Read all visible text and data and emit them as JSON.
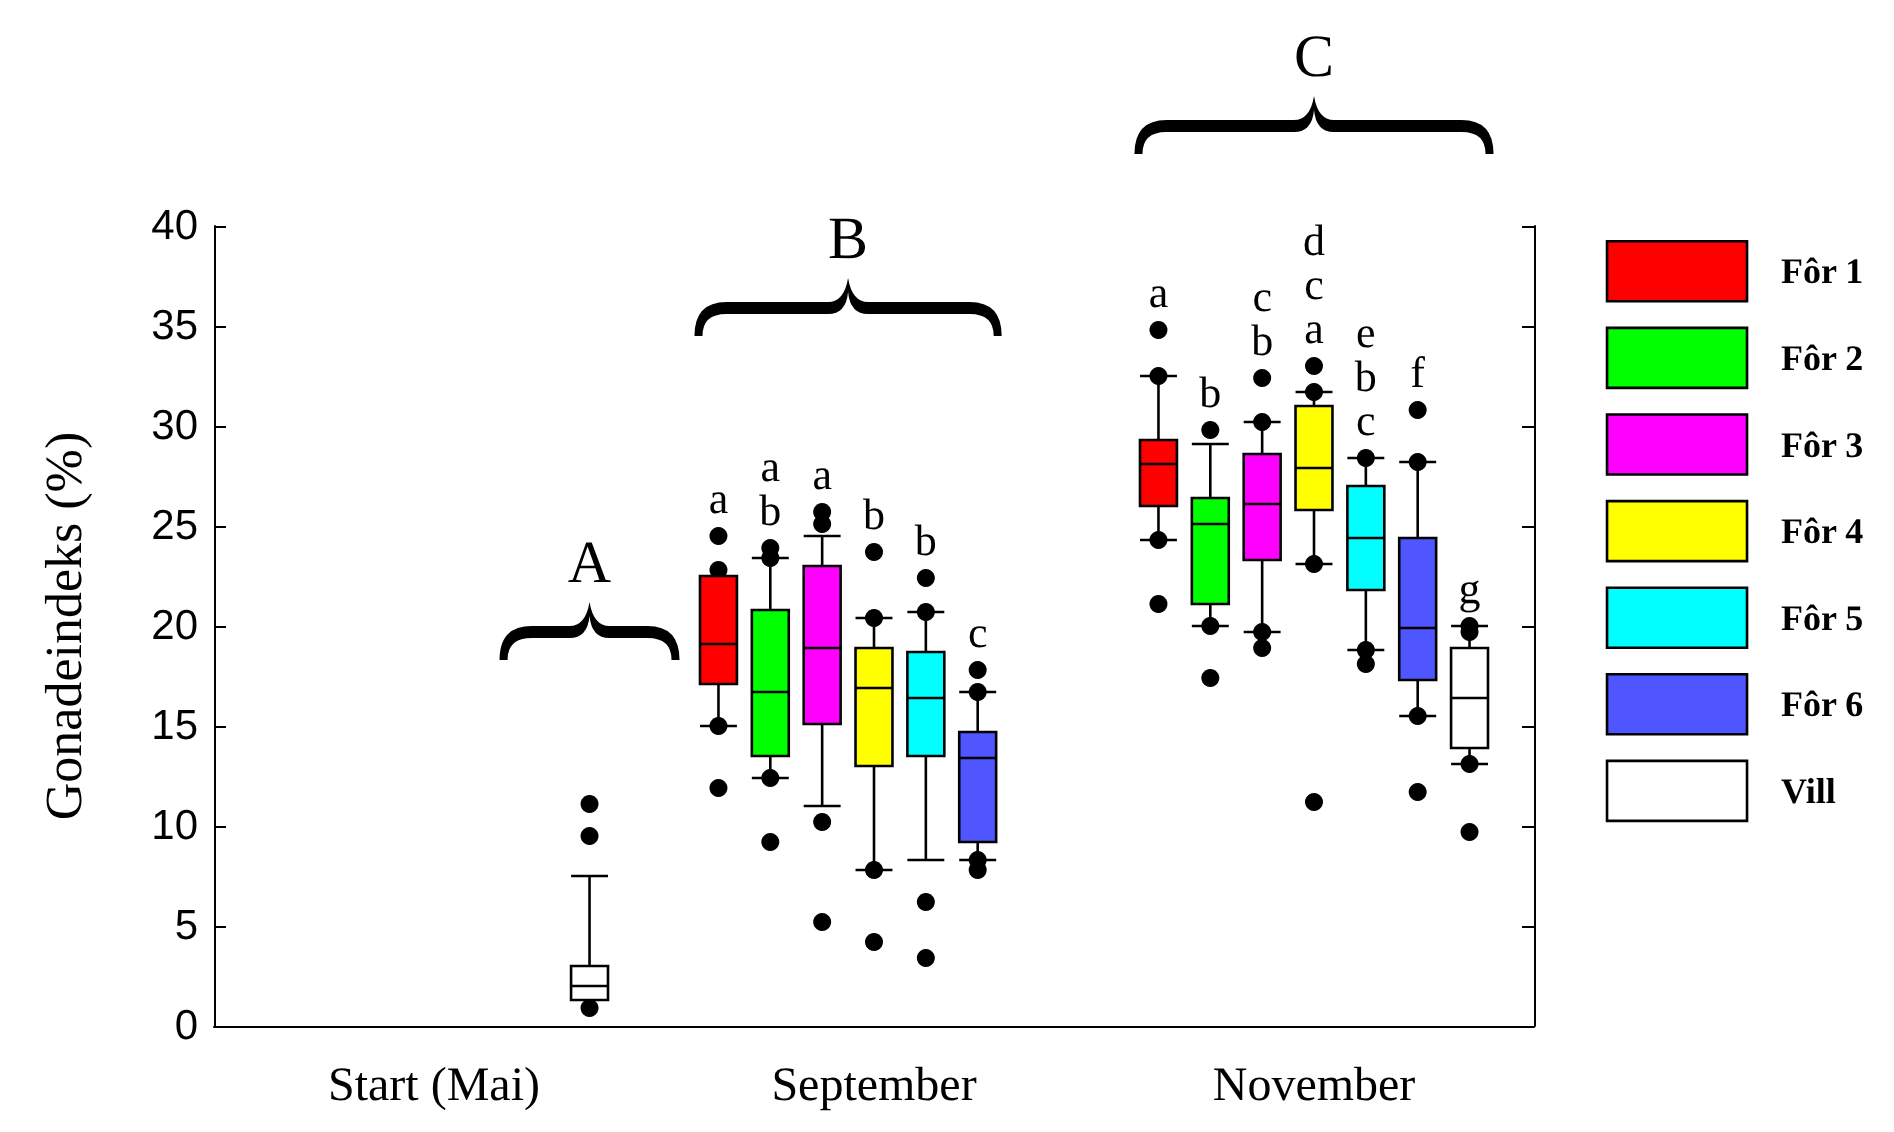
{
  "chart_data": {
    "type": "box",
    "ylabel": "Gonadeindeks (%)",
    "categories": [
      "Start (Mai)",
      "September",
      "November"
    ],
    "ylim": [
      0,
      40
    ],
    "yticks": [
      0,
      5,
      10,
      15,
      20,
      25,
      30,
      35,
      40
    ],
    "legend": "right",
    "grid": false,
    "annotations": [
      "A",
      "B",
      "C"
    ],
    "series": [
      {
        "name": "Fôr 1",
        "color": "#ff0000",
        "value_labels": [
          null,
          "a",
          "a"
        ],
        "boxes": [
          null,
          {
            "low": 15.0,
            "q1": 17.1,
            "median": 19.1,
            "q3": 22.5,
            "high": 22.5,
            "outliers": [
              24.5,
              22.8,
              15.0,
              11.9
            ]
          },
          {
            "low": 24.3,
            "q1": 26.0,
            "median": 28.1,
            "q3": 29.3,
            "high": 32.5,
            "outliers": [
              34.8,
              32.5,
              24.3,
              21.1
            ]
          }
        ]
      },
      {
        "name": "Fôr 2",
        "color": "#00ff00",
        "value_labels": [
          null,
          "a\nb",
          "b"
        ],
        "boxes": [
          null,
          {
            "low": 12.4,
            "q1": 13.5,
            "median": 16.7,
            "q3": 20.8,
            "high": 23.4,
            "outliers": [
              23.9,
              23.4,
              12.4,
              9.2
            ]
          },
          {
            "low": 20.0,
            "q1": 21.1,
            "median": 25.1,
            "q3": 26.4,
            "high": 29.1,
            "outliers": [
              29.8,
              20.0,
              17.4
            ]
          }
        ]
      },
      {
        "name": "Fôr 3",
        "color": "#ff00ff",
        "value_labels": [
          null,
          "a",
          "c\nb"
        ],
        "boxes": [
          null,
          {
            "low": 11.0,
            "q1": 15.1,
            "median": 18.9,
            "q3": 23.0,
            "high": 24.5,
            "outliers": [
              25.7,
              25.1,
              10.2,
              5.2
            ]
          },
          {
            "low": 19.7,
            "q1": 23.3,
            "median": 26.1,
            "q3": 28.6,
            "high": 30.2,
            "outliers": [
              32.4,
              30.2,
              19.7,
              18.9
            ]
          }
        ]
      },
      {
        "name": "Fôr 4",
        "color": "#ffff00",
        "value_labels": [
          null,
          "b",
          "d\nc\na"
        ],
        "boxes": [
          null,
          {
            "low": 7.8,
            "q1": 13.0,
            "median": 16.9,
            "q3": 18.9,
            "high": 20.4,
            "outliers": [
              23.7,
              20.4,
              7.8,
              4.2
            ]
          },
          {
            "low": 23.1,
            "q1": 25.8,
            "median": 27.9,
            "q3": 31.0,
            "high": 31.7,
            "outliers": [
              33.0,
              31.7,
              23.1,
              11.2
            ]
          }
        ]
      },
      {
        "name": "Fôr 5",
        "color": "#00ffff",
        "value_labels": [
          null,
          "b",
          "e\nb\nc"
        ],
        "boxes": [
          null,
          {
            "low": 8.3,
            "q1": 13.5,
            "median": 16.4,
            "q3": 18.7,
            "high": 20.7,
            "outliers": [
              22.4,
              20.7,
              6.2,
              3.4
            ]
          },
          {
            "low": 18.8,
            "q1": 21.8,
            "median": 24.4,
            "q3": 27.0,
            "high": 28.4,
            "outliers": [
              28.4,
              18.8,
              18.1
            ]
          }
        ]
      },
      {
        "name": "Fôr 6",
        "color": "#4f56ff",
        "value_labels": [
          null,
          "c",
          "f"
        ],
        "boxes": [
          null,
          {
            "low": 8.3,
            "q1": 9.2,
            "median": 13.4,
            "q3": 14.7,
            "high": 16.7,
            "outliers": [
              17.8,
              16.7,
              8.3,
              7.8
            ]
          },
          {
            "low": 15.5,
            "q1": 17.3,
            "median": 19.9,
            "q3": 24.4,
            "high": 28.2,
            "outliers": [
              30.8,
              28.2,
              15.5,
              11.7
            ]
          }
        ]
      },
      {
        "name": "Vill",
        "color": "#ffffff",
        "value_labels": [
          null,
          null,
          "g"
        ],
        "boxes": [
          {
            "low": 1.3,
            "q1": 1.3,
            "median": 2.0,
            "q3": 3.0,
            "high": 7.5,
            "outliers": [
              11.1,
              9.5,
              0.9
            ]
          },
          null,
          {
            "low": 13.1,
            "q1": 13.9,
            "median": 16.4,
            "q3": 18.9,
            "high": 20.0,
            "outliers": [
              20.0,
              19.7,
              13.1,
              9.7
            ]
          }
        ]
      }
    ]
  }
}
